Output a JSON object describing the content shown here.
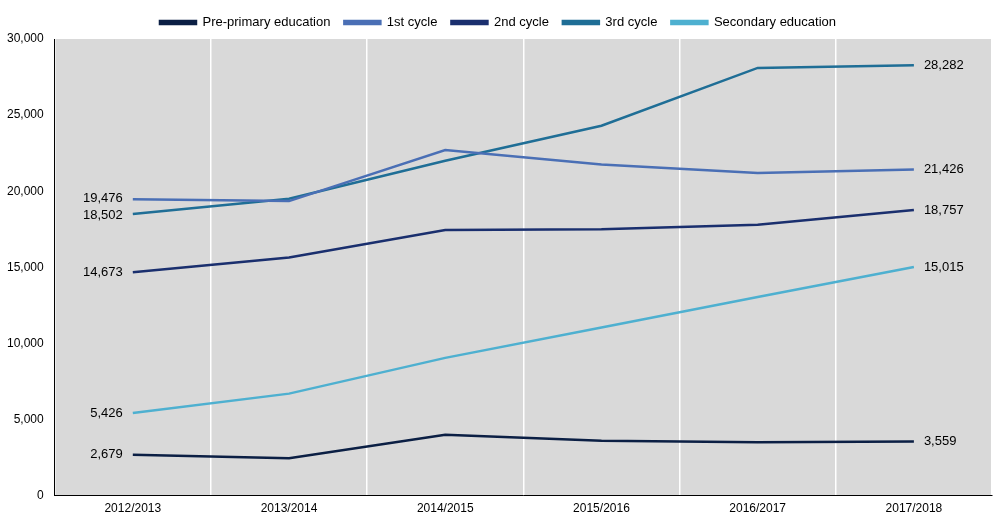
{
  "chart_data": {
    "type": "line",
    "categories": [
      "2012/2013",
      "2013/2014",
      "2014/2015",
      "2015/2016",
      "2016/2017",
      "2017/2018"
    ],
    "series": [
      {
        "name": "Pre-primary education",
        "color": "#0b1f44",
        "values": [
          2679,
          2450,
          4000,
          3600,
          3500,
          3559
        ],
        "value_labels": [
          "2,679",
          null,
          null,
          null,
          null,
          "3,559"
        ]
      },
      {
        "name": "1st cycle",
        "color": "#4a6fb5",
        "values": [
          19476,
          19350,
          22700,
          21750,
          21200,
          21426
        ],
        "value_labels": [
          "19,476",
          null,
          null,
          null,
          null,
          "21,426"
        ]
      },
      {
        "name": "2nd cycle",
        "color": "#1a2f6e",
        "values": [
          14673,
          15650,
          17450,
          17500,
          17800,
          18757
        ],
        "value_labels": [
          "14,673",
          null,
          null,
          null,
          null,
          "18,757"
        ]
      },
      {
        "name": "3rd cycle",
        "color": "#1f6e96",
        "values": [
          18502,
          19500,
          22000,
          24300,
          28100,
          28282
        ],
        "value_labels": [
          "18,502",
          null,
          null,
          null,
          null,
          "28,282"
        ]
      },
      {
        "name": "Secondary education",
        "color": "#4eb0d0",
        "values": [
          5426,
          6700,
          9050,
          11050,
          13050,
          15015
        ],
        "value_labels": [
          "5,426",
          null,
          null,
          null,
          null,
          "15,015"
        ]
      }
    ],
    "ylim": [
      0,
      30000
    ],
    "yticks": [
      0,
      {
        "value": 5000,
        "label": "5,000"
      },
      {
        "value": 10000,
        "label": "10,000"
      },
      {
        "value": 15000,
        "label": "15,000"
      },
      {
        "value": 20000,
        "label": "20,000"
      },
      {
        "value": 25000,
        "label": "25,000"
      },
      {
        "value": 30000,
        "label": "30,000"
      }
    ],
    "grid": true,
    "legend": "top",
    "data_labels": true
  }
}
